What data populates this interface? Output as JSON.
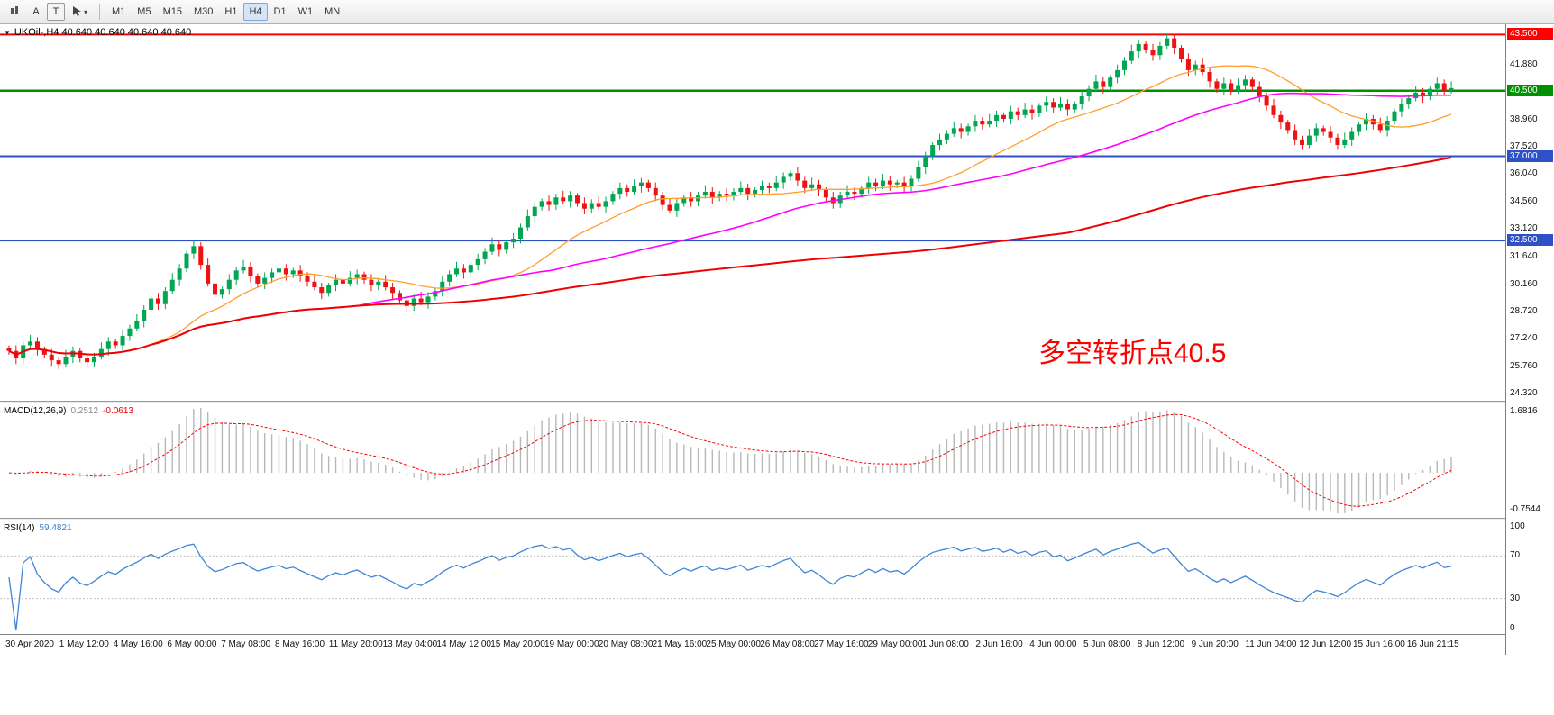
{
  "toolbar": {
    "caret": "▾",
    "tools": [
      {
        "label": "A"
      },
      {
        "label": "T"
      }
    ],
    "timeframes": [
      {
        "label": "M1",
        "selected": false
      },
      {
        "label": "M5",
        "selected": false
      },
      {
        "label": "M15",
        "selected": false
      },
      {
        "label": "M30",
        "selected": false
      },
      {
        "label": "H1",
        "selected": false
      },
      {
        "label": "H4",
        "selected": true
      },
      {
        "label": "D1",
        "selected": false
      },
      {
        "label": "W1",
        "selected": false
      },
      {
        "label": "MN",
        "selected": false
      }
    ]
  },
  "chart": {
    "collapse_arrow": "▼",
    "title": "UKOil-,H4  40.640 40.640 40.640 40.640",
    "annotation": "多空转折点40.5"
  },
  "panes": {
    "macd_label": "MACD(12,26,9)",
    "macd_value_1": "0.2512",
    "macd_value_2": "-0.0613",
    "rsi_label": "RSI(14)",
    "rsi_value": "59.4821"
  },
  "chart_data": [
    {
      "type": "candlestick",
      "symbol": "UKOil-",
      "timeframe": "H4",
      "ylim": [
        23.94,
        44.05
      ],
      "first_open": 26.75,
      "up_color": "#00a651",
      "down_color": "#ef1212",
      "y_ticks": [
        41.88,
        38.96,
        37.52,
        36.04,
        34.56,
        33.12,
        31.64,
        30.16,
        28.72,
        27.24,
        25.76,
        24.32
      ],
      "x_labels": [
        "30 Apr 2020",
        "1 May 12:00",
        "4 May 16:00",
        "6 May 00:00",
        "7 May 08:00",
        "8 May 16:00",
        "11 May 20:00",
        "13 May 04:00",
        "14 May 12:00",
        "15 May 20:00",
        "19 May 00:00",
        "20 May 08:00",
        "21 May 16:00",
        "25 May 00:00",
        "26 May 08:00",
        "27 May 16:00",
        "29 May 00:00",
        "1 Jun 08:00",
        "2 Jun 16:00",
        "4 Jun 00:00",
        "5 Jun 08:00",
        "8 Jun 12:00",
        "9 Jun 20:00",
        "11 Jun 04:00",
        "12 Jun 12:00",
        "15 Jun 16:00",
        "16 Jun 21:15"
      ],
      "horizontal_lines": [
        {
          "value": 43.5,
          "color": "#ff0000",
          "label": "43.500",
          "width": 2
        },
        {
          "value": 40.5,
          "color": "#009000",
          "label": "40.500",
          "width": 2.5
        },
        {
          "value": 37.0,
          "color": "#3050c8",
          "label": "37.000",
          "width": 2
        },
        {
          "value": 32.5,
          "color": "#3050c8",
          "label": "32.500",
          "width": 2
        }
      ],
      "moving_averages": [
        {
          "name": "fast",
          "period": 20,
          "color": "#ff9e2c",
          "width": 1.3
        },
        {
          "name": "medium",
          "period": 50,
          "color": "#ff00ff",
          "width": 1.6
        },
        {
          "name": "slow",
          "period": 150,
          "color": "#f00000",
          "width": 2
        }
      ],
      "closes": [
        26.6,
        26.2,
        26.9,
        27.1,
        26.7,
        26.4,
        26.1,
        25.9,
        26.3,
        26.6,
        26.2,
        26.0,
        26.3,
        26.7,
        27.1,
        26.9,
        27.4,
        27.8,
        28.2,
        28.8,
        29.4,
        29.1,
        29.8,
        30.4,
        31.0,
        31.8,
        32.2,
        31.2,
        30.2,
        29.6,
        29.9,
        30.4,
        30.9,
        31.1,
        30.6,
        30.2,
        30.5,
        30.8,
        31.0,
        30.7,
        30.9,
        30.6,
        30.3,
        30.0,
        29.7,
        30.1,
        30.4,
        30.2,
        30.5,
        30.7,
        30.4,
        30.1,
        30.3,
        30.0,
        29.7,
        29.3,
        29.0,
        29.4,
        29.2,
        29.5,
        29.8,
        30.3,
        30.7,
        31.0,
        30.8,
        31.2,
        31.5,
        31.9,
        32.3,
        32.0,
        32.4,
        32.6,
        33.2,
        33.8,
        34.3,
        34.6,
        34.4,
        34.8,
        34.6,
        34.9,
        34.5,
        34.2,
        34.5,
        34.3,
        34.6,
        35.0,
        35.3,
        35.1,
        35.4,
        35.6,
        35.3,
        34.9,
        34.4,
        34.1,
        34.5,
        34.8,
        34.6,
        34.9,
        35.1,
        34.8,
        35.0,
        34.9,
        35.1,
        35.3,
        35.0,
        35.2,
        35.4,
        35.3,
        35.6,
        35.9,
        36.1,
        35.7,
        35.3,
        35.5,
        35.2,
        34.8,
        34.5,
        34.9,
        35.1,
        35.0,
        35.3,
        35.6,
        35.4,
        35.7,
        35.5,
        35.6,
        35.4,
        35.8,
        36.4,
        37.0,
        37.6,
        37.9,
        38.2,
        38.5,
        38.3,
        38.6,
        38.9,
        38.7,
        38.9,
        39.2,
        39.0,
        39.4,
        39.2,
        39.5,
        39.3,
        39.7,
        39.9,
        39.6,
        39.8,
        39.5,
        39.8,
        40.2,
        40.6,
        41.0,
        40.7,
        41.2,
        41.6,
        42.1,
        42.6,
        43.0,
        42.7,
        42.4,
        42.9,
        43.3,
        42.8,
        42.2,
        41.6,
        41.9,
        41.5,
        41.0,
        40.6,
        40.9,
        40.5,
        40.8,
        41.1,
        40.7,
        40.2,
        39.7,
        39.2,
        38.8,
        38.4,
        37.9,
        37.6,
        38.1,
        38.5,
        38.3,
        38.0,
        37.6,
        37.9,
        38.3,
        38.7,
        39.0,
        38.7,
        38.4,
        38.9,
        39.4,
        39.8,
        40.1,
        40.4,
        40.2,
        40.6,
        40.9,
        40.5,
        40.64
      ],
      "annotation": {
        "text": "多空转折点40.5",
        "color": "#fd0000"
      }
    },
    {
      "type": "macd-histogram",
      "label": "MACD(12,26,9)",
      "values_text": "0.2512 -0.0613",
      "params": [
        12,
        26,
        9
      ],
      "scale_labels": [
        "1.6816",
        "-0.7544"
      ],
      "histogram_color": "#b8b8b8",
      "signal_color": "#ff0000"
    },
    {
      "type": "line",
      "label": "RSI(14)",
      "value_text": "59.4821",
      "period": 14,
      "levels": [
        70,
        30
      ],
      "ylim": [
        0,
        100
      ],
      "scale_labels": [
        "100",
        "70",
        "30",
        "0"
      ],
      "line_color": "#3d85d8"
    }
  ]
}
